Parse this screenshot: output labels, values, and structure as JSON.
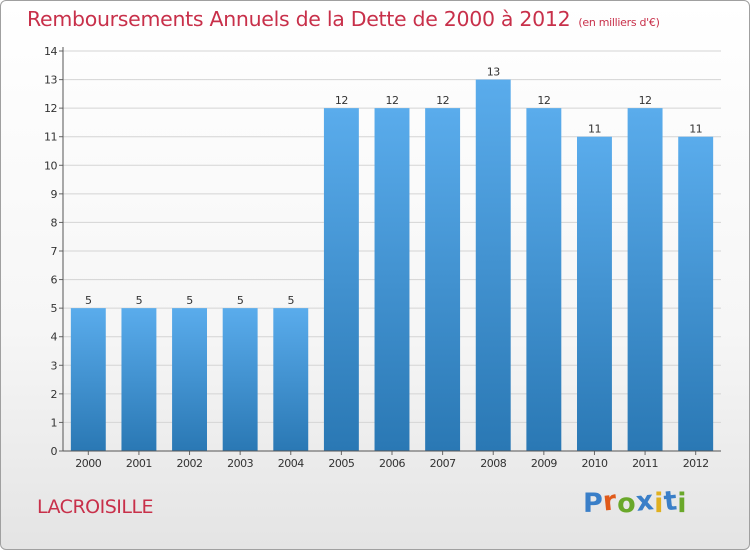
{
  "header": {
    "title": "Remboursements Annuels de la Dette de 2000 à 2012",
    "unit": "(en milliers d'€)"
  },
  "commune": "LACROISILLE",
  "brand": {
    "text": "Proxiti",
    "letter_colors": [
      "#3a7fc8",
      "#e05a1a",
      "#6aa82a",
      "#3a7fc8",
      "#e0b020",
      "#3a7fc8",
      "#6aa82a"
    ]
  },
  "colors": {
    "bar_top": "#5aacec",
    "bar_bottom": "#2a78b4",
    "title": "#c8304a",
    "grid": "#d4d4d4"
  },
  "chart_data": {
    "type": "bar",
    "title": "Remboursements Annuels de la Dette de 2000 à 2012",
    "xlabel": "",
    "ylabel": "",
    "categories": [
      "2000",
      "2001",
      "2002",
      "2003",
      "2004",
      "2005",
      "2006",
      "2007",
      "2008",
      "2009",
      "2010",
      "2011",
      "2012"
    ],
    "values": [
      5,
      5,
      5,
      5,
      5,
      12,
      12,
      12,
      13,
      12,
      11,
      12,
      11
    ],
    "ylim": [
      0,
      14
    ],
    "yticks": [
      "0",
      "1",
      "2",
      "3",
      "4",
      "5",
      "6",
      "7",
      "8",
      "9",
      "10",
      "11",
      "12",
      "13",
      "14"
    ],
    "grid": true,
    "legend": "none"
  }
}
